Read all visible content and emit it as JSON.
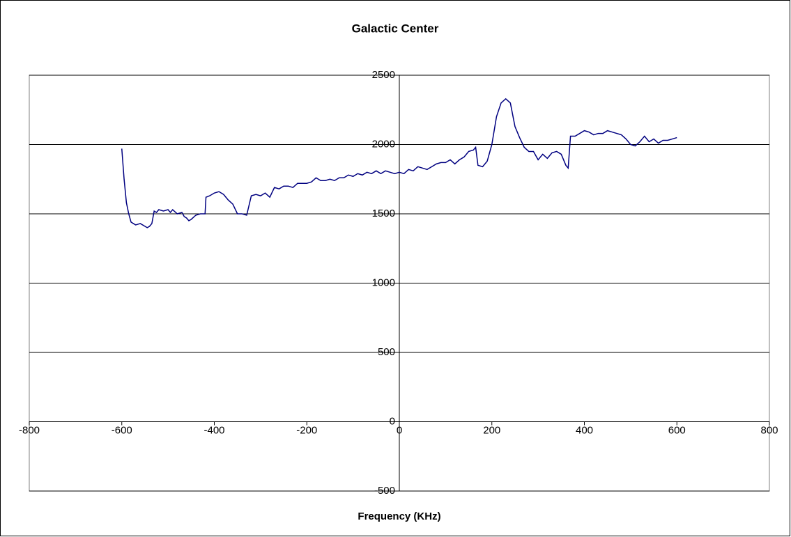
{
  "chart_data": {
    "type": "line",
    "title": "Galactic Center",
    "x_label": "Frequency (KHz)",
    "x": [
      -600,
      -595,
      -590,
      -585,
      -580,
      -575,
      -570,
      -560,
      -550,
      -545,
      -540,
      -535,
      -530,
      -525,
      -520,
      -510,
      -500,
      -495,
      -490,
      -480,
      -470,
      -465,
      -460,
      -455,
      -450,
      -440,
      -430,
      -420,
      -418,
      -410,
      -400,
      -390,
      -380,
      -370,
      -360,
      -350,
      -340,
      -330,
      -325,
      -320,
      -310,
      -300,
      -290,
      -280,
      -270,
      -260,
      -250,
      -240,
      -230,
      -220,
      -210,
      -200,
      -190,
      -180,
      -170,
      -160,
      -150,
      -140,
      -130,
      -120,
      -110,
      -100,
      -90,
      -80,
      -70,
      -60,
      -50,
      -40,
      -30,
      -20,
      -10,
      0,
      10,
      20,
      30,
      40,
      50,
      60,
      70,
      80,
      90,
      100,
      110,
      120,
      130,
      140,
      150,
      160,
      165,
      170,
      180,
      190,
      200,
      210,
      220,
      230,
      240,
      250,
      260,
      270,
      280,
      290,
      300,
      310,
      320,
      330,
      340,
      350,
      360,
      365,
      370,
      380,
      390,
      400,
      410,
      420,
      430,
      440,
      450,
      460,
      470,
      480,
      490,
      500,
      510,
      520,
      530,
      540,
      550,
      560,
      570,
      580,
      590,
      600
    ],
    "values": [
      1970,
      1750,
      1580,
      1500,
      1440,
      1430,
      1420,
      1430,
      1410,
      1400,
      1410,
      1430,
      1520,
      1510,
      1530,
      1520,
      1530,
      1510,
      1530,
      1500,
      1510,
      1480,
      1470,
      1450,
      1460,
      1490,
      1500,
      1500,
      1620,
      1630,
      1650,
      1660,
      1640,
      1600,
      1570,
      1500,
      1500,
      1490,
      1560,
      1630,
      1640,
      1630,
      1650,
      1620,
      1690,
      1680,
      1700,
      1700,
      1690,
      1720,
      1720,
      1720,
      1730,
      1760,
      1740,
      1740,
      1750,
      1740,
      1760,
      1760,
      1780,
      1770,
      1790,
      1780,
      1800,
      1790,
      1810,
      1790,
      1810,
      1800,
      1790,
      1800,
      1790,
      1820,
      1810,
      1840,
      1830,
      1820,
      1840,
      1860,
      1870,
      1870,
      1890,
      1860,
      1890,
      1910,
      1950,
      1960,
      1980,
      1850,
      1840,
      1880,
      2000,
      2200,
      2300,
      2330,
      2300,
      2130,
      2050,
      1980,
      1950,
      1950,
      1890,
      1930,
      1900,
      1940,
      1950,
      1930,
      1850,
      1830,
      2060,
      2060,
      2080,
      2100,
      2090,
      2070,
      2080,
      2080,
      2100,
      2090,
      2080,
      2070,
      2040,
      2000,
      1990,
      2020,
      2060,
      2020,
      2040,
      2010,
      2030,
      2030,
      2040,
      2050
    ],
    "color": "#000080",
    "xlim": [
      -800,
      800
    ],
    "xticks": [
      -800,
      -600,
      -400,
      -200,
      0,
      200,
      400,
      600,
      800
    ],
    "ylim": [
      -500,
      2500
    ],
    "yticks": [
      -500,
      0,
      500,
      1000,
      1500,
      2000,
      2500
    ],
    "grid": true
  }
}
